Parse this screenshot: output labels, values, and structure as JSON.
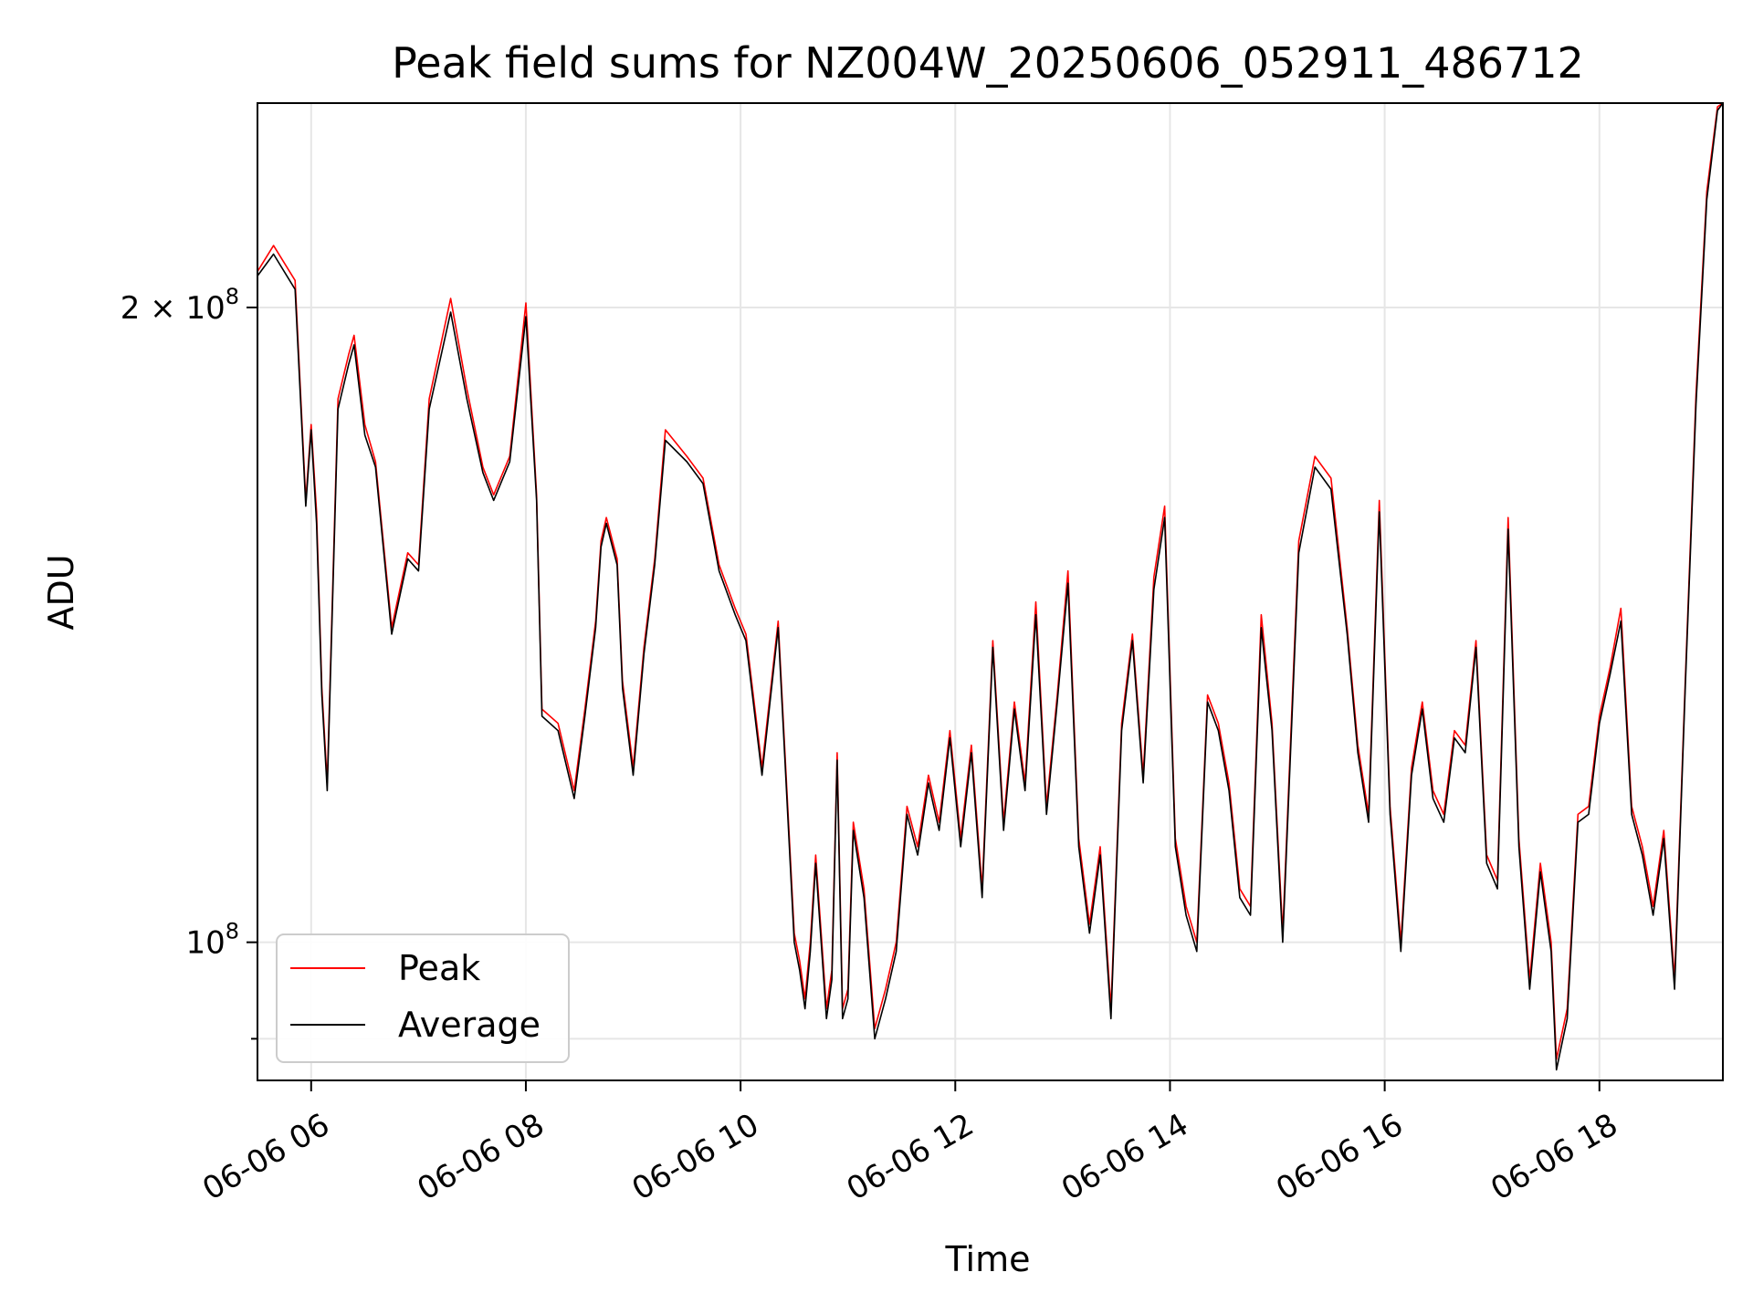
{
  "chart_data": {
    "type": "line",
    "title": "Peak field sums for NZ004W_20250606_052911_486712",
    "xlabel": "Time",
    "ylabel": "ADU",
    "y_scale": "log",
    "ylim": [
      86000000,
      250000000
    ],
    "xlim_hours": [
      5.5,
      19.15
    ],
    "grid": true,
    "legend_position": "lower-left",
    "x_ticks": [
      {
        "hour": 6,
        "label": "06-06 06"
      },
      {
        "hour": 8,
        "label": "06-06 08"
      },
      {
        "hour": 10,
        "label": "06-06 10"
      },
      {
        "hour": 12,
        "label": "06-06 12"
      },
      {
        "hour": 14,
        "label": "06-06 14"
      },
      {
        "hour": 16,
        "label": "06-06 16"
      },
      {
        "hour": 18,
        "label": "06-06 18"
      }
    ],
    "y_major_ticks": [
      {
        "value": 100000000,
        "base": "10",
        "exp": "8",
        "label": "10^8"
      },
      {
        "value": 200000000,
        "base": "2 × 10",
        "exp": "8",
        "label": "2 × 10^8"
      }
    ],
    "y_minor_ticks": [
      90000000
    ],
    "x_hours": [
      5.5,
      5.65,
      5.85,
      5.95,
      6.0,
      6.05,
      6.1,
      6.15,
      6.25,
      6.35,
      6.4,
      6.5,
      6.6,
      6.75,
      6.9,
      7.0,
      7.1,
      7.3,
      7.45,
      7.6,
      7.7,
      7.85,
      8.0,
      8.1,
      8.15,
      8.3,
      8.45,
      8.55,
      8.65,
      8.7,
      8.75,
      8.85,
      8.9,
      9.0,
      9.1,
      9.2,
      9.3,
      9.5,
      9.65,
      9.8,
      9.95,
      10.05,
      10.2,
      10.35,
      10.5,
      10.55,
      10.6,
      10.65,
      10.7,
      10.8,
      10.85,
      10.9,
      10.95,
      11.0,
      11.05,
      11.15,
      11.25,
      11.35,
      11.45,
      11.55,
      11.65,
      11.75,
      11.85,
      11.95,
      12.05,
      12.15,
      12.25,
      12.35,
      12.45,
      12.55,
      12.65,
      12.75,
      12.85,
      12.95,
      13.05,
      13.15,
      13.25,
      13.35,
      13.45,
      13.55,
      13.65,
      13.75,
      13.85,
      13.95,
      14.05,
      14.15,
      14.25,
      14.35,
      14.45,
      14.55,
      14.65,
      14.75,
      14.85,
      14.95,
      15.05,
      15.2,
      15.35,
      15.5,
      15.65,
      15.75,
      15.85,
      15.95,
      16.05,
      16.15,
      16.25,
      16.35,
      16.45,
      16.55,
      16.65,
      16.75,
      16.85,
      16.95,
      17.05,
      17.15,
      17.25,
      17.35,
      17.45,
      17.55,
      17.6,
      17.7,
      17.8,
      17.9,
      18.0,
      18.1,
      18.2,
      18.3,
      18.4,
      18.5,
      18.6,
      18.7,
      18.8,
      18.9,
      19.0,
      19.1,
      19.15
    ],
    "series": [
      {
        "name": "Peak",
        "color": "#ff0000",
        "values": [
          208000000,
          214000000,
          206000000,
          162000000,
          176000000,
          160000000,
          132000000,
          119000000,
          181000000,
          190000000,
          194000000,
          176000000,
          169000000,
          141000000,
          153000000,
          151000000,
          181000000,
          202000000,
          183000000,
          168000000,
          163000000,
          170000000,
          201000000,
          163000000,
          129000000,
          127000000,
          118000000,
          129000000,
          142000000,
          155000000,
          159000000,
          152000000,
          133000000,
          121000000,
          138000000,
          152000000,
          175000000,
          170000000,
          166000000,
          151000000,
          144000000,
          140000000,
          121000000,
          142000000,
          101000000,
          98000000,
          94000000,
          100000000,
          110000000,
          93000000,
          97000000,
          123000000,
          93000000,
          95000000,
          114000000,
          106000000,
          91000000,
          95000000,
          100000000,
          116000000,
          111000000,
          120000000,
          114000000,
          126000000,
          112000000,
          124000000,
          106000000,
          139000000,
          114000000,
          130000000,
          119000000,
          145000000,
          116000000,
          131000000,
          150000000,
          112000000,
          102000000,
          111000000,
          93000000,
          127000000,
          140000000,
          120000000,
          149000000,
          161000000,
          112000000,
          104000000,
          100000000,
          131000000,
          127000000,
          119000000,
          106000000,
          104000000,
          143000000,
          127000000,
          101000000,
          155000000,
          170000000,
          166000000,
          141000000,
          124000000,
          115000000,
          162000000,
          116000000,
          100000000,
          121000000,
          130000000,
          118000000,
          115000000,
          126000000,
          124000000,
          139000000,
          110000000,
          107000000,
          159000000,
          112000000,
          96000000,
          109000000,
          100000000,
          88000000,
          93000000,
          115000000,
          116000000,
          128000000,
          135000000,
          144000000,
          116000000,
          111000000,
          104000000,
          113000000,
          96000000,
          133000000,
          182000000,
          227000000,
          249000000,
          250000000
        ]
      },
      {
        "name": "Average",
        "color": "#000000",
        "values": [
          207000000,
          212000000,
          204000000,
          161000000,
          175000000,
          158000000,
          131000000,
          118000000,
          179000000,
          188000000,
          192000000,
          174000000,
          168000000,
          140000000,
          152000000,
          150000000,
          179000000,
          199000000,
          181000000,
          167000000,
          162000000,
          169000000,
          198000000,
          162000000,
          128000000,
          126000000,
          117000000,
          128000000,
          141000000,
          154000000,
          158000000,
          151000000,
          132000000,
          120000000,
          137000000,
          151000000,
          173000000,
          169000000,
          165000000,
          150000000,
          143000000,
          139000000,
          120000000,
          141000000,
          100000000,
          97000000,
          93000000,
          99000000,
          109000000,
          92000000,
          96000000,
          122000000,
          92000000,
          94000000,
          113000000,
          105000000,
          90000000,
          94000000,
          99000000,
          115000000,
          110000000,
          119000000,
          113000000,
          125000000,
          111000000,
          123000000,
          105000000,
          138000000,
          113000000,
          129000000,
          118000000,
          143000000,
          115000000,
          130000000,
          148000000,
          111000000,
          101000000,
          110000000,
          92000000,
          126000000,
          139000000,
          119000000,
          147000000,
          159000000,
          111000000,
          103000000,
          99000000,
          130000000,
          126000000,
          118000000,
          105000000,
          103000000,
          141000000,
          126000000,
          100000000,
          153000000,
          168000000,
          164000000,
          140000000,
          123000000,
          114000000,
          160000000,
          115000000,
          99000000,
          120000000,
          129000000,
          117000000,
          114000000,
          125000000,
          123000000,
          138000000,
          109000000,
          106000000,
          157000000,
          111000000,
          95000000,
          108000000,
          99000000,
          87000000,
          92000000,
          114000000,
          115000000,
          127000000,
          134000000,
          142000000,
          115000000,
          110000000,
          103000000,
          112000000,
          95000000,
          132000000,
          180000000,
          225000000,
          248000000,
          250000000
        ]
      }
    ]
  }
}
